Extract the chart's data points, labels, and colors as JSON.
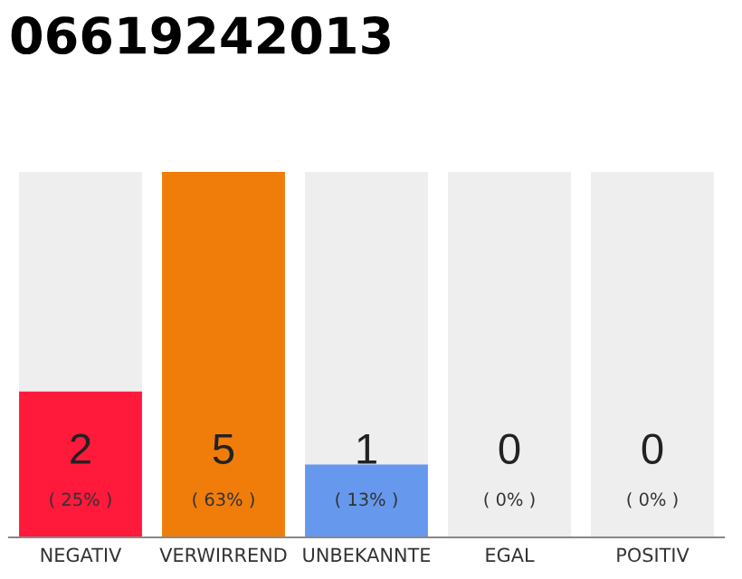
{
  "chart_data": {
    "type": "bar",
    "title": "06619242013",
    "categories": [
      "NEGATIV",
      "VERWIRREND",
      "UNBEKANNTE",
      "EGAL",
      "POSITIV"
    ],
    "stacked": true,
    "series": [
      {
        "color": "#ff1a3c",
        "colors": [
          "#ff1a3c",
          "#f07d0a",
          "#6699ee",
          "#eeeeee",
          "#eeeeee"
        ],
        "values": [
          2,
          5,
          1,
          0,
          0
        ],
        "value_labels": [
          "2",
          "5",
          "1",
          null,
          null
        ]
      },
      {
        "color": "#eeeeee",
        "values": [
          3,
          0,
          4,
          5,
          5
        ]
      }
    ],
    "annotations": [
      "( 25% )",
      "( 63% )",
      "( 13% )",
      "( 0% )",
      "( 0% )",
      "0",
      "0"
    ],
    "grid": false,
    "legend": false
  }
}
